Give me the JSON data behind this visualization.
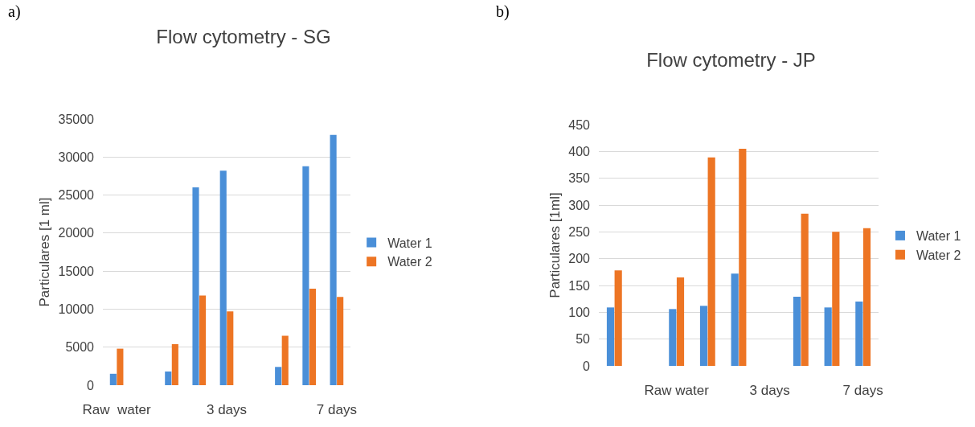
{
  "chart_data": [
    {
      "type": "bar",
      "title": "Flow cytometry - SG",
      "ylabel": "Particulares [1 ml]",
      "annotations": [
        "a)"
      ],
      "categories": [
        "Raw  water",
        null,
        null,
        null,
        "3 days",
        null,
        null,
        null,
        "7 days"
      ],
      "series": [
        {
          "name": "Water 1",
          "color": "#4a8fd8",
          "values": [
            1500,
            null,
            1800,
            26000,
            28200,
            null,
            2400,
            28800,
            32900
          ]
        },
        {
          "name": "Water 2",
          "color": "#ed7524",
          "values": [
            4800,
            null,
            5400,
            11800,
            9700,
            null,
            6500,
            12700,
            11600
          ]
        }
      ],
      "ylim": [
        0,
        35000
      ],
      "yticks": [
        0,
        5000,
        10000,
        15000,
        20000,
        25000,
        30000,
        35000
      ],
      "grid": "y",
      "legend": "right"
    },
    {
      "type": "bar",
      "title": "Flow cytometry - JP",
      "ylabel": "Particulares [1ml]",
      "annotations": [
        "b)"
      ],
      "categories": [
        null,
        null,
        "Raw water",
        null,
        null,
        "3 days",
        null,
        null,
        "7 days"
      ],
      "series": [
        {
          "name": "Water 1",
          "color": "#4a8fd8",
          "values": [
            109,
            null,
            106,
            112,
            172,
            null,
            129,
            109,
            120
          ]
        },
        {
          "name": "Water 2",
          "color": "#ed7524",
          "values": [
            178,
            null,
            165,
            389,
            405,
            null,
            284,
            250,
            257
          ]
        }
      ],
      "ylim": [
        0,
        450
      ],
      "yticks": [
        0,
        50,
        100,
        150,
        200,
        250,
        300,
        350,
        400,
        450
      ],
      "grid": "y",
      "legend": "right"
    }
  ]
}
